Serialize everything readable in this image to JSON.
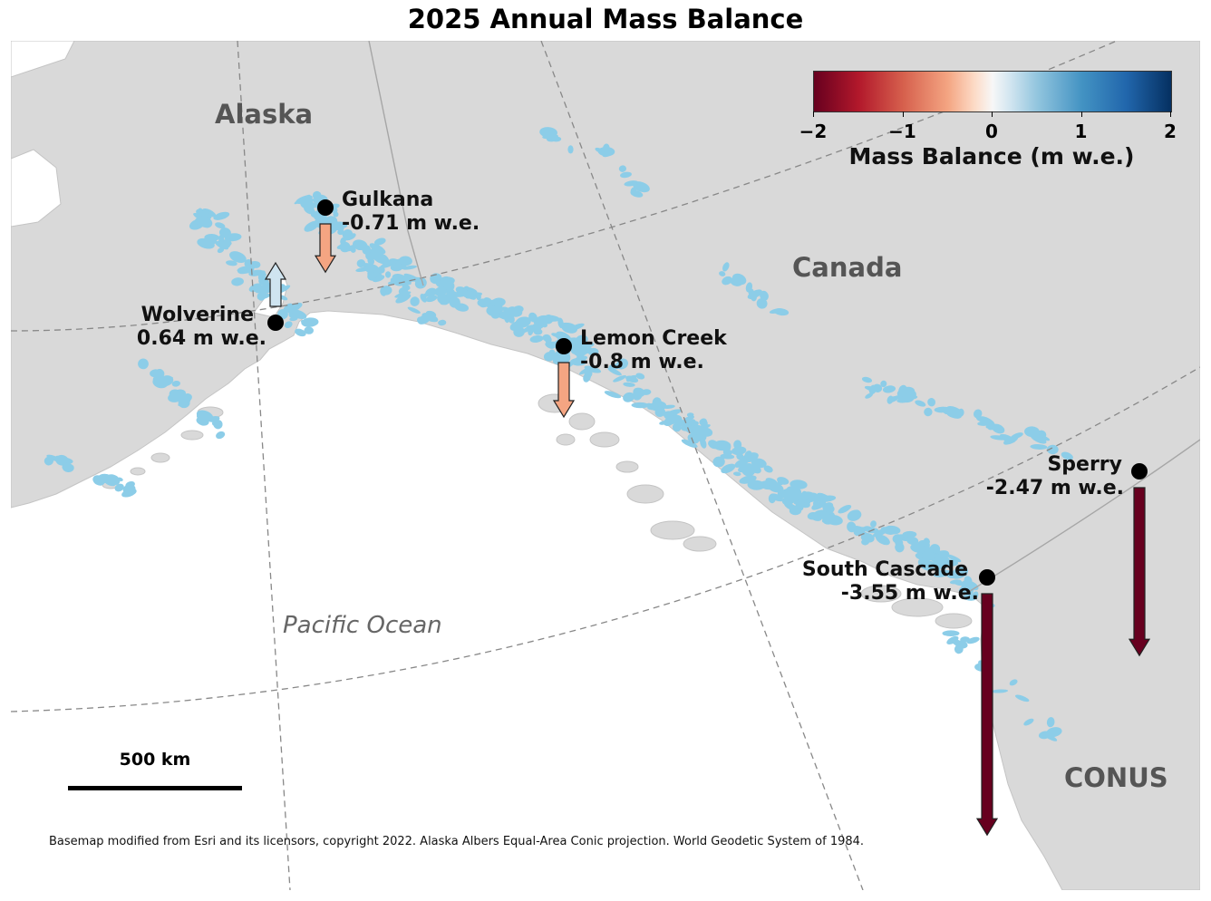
{
  "title": "2025 Annual Mass Balance",
  "regions": {
    "alaska": "Alaska",
    "canada": "Canada",
    "conus": "CONUS",
    "ocean": "Pacific Ocean"
  },
  "colors": {
    "land": "#d9d9d9",
    "water": "#ffffff",
    "glacier": "#8ccde8",
    "graticule": "#888888",
    "marker": "#000000",
    "arrow_gain": "#cfe4f0",
    "arrow_small_loss": "#f4a582",
    "arrow_large_loss": "#67001f"
  },
  "colorbar": {
    "title": "Mass Balance (m w.e.)",
    "min": -2,
    "max": 2,
    "ticks": [
      "−2",
      "−1",
      "0",
      "1",
      "2"
    ],
    "colormap": "RdBu"
  },
  "glaciers": [
    {
      "name": "Gulkana",
      "value_label": "-0.71 m w.e.",
      "mass_balance": -0.71
    },
    {
      "name": "Wolverine",
      "value_label": "0.64 m w.e.",
      "mass_balance": 0.64
    },
    {
      "name": "Lemon Creek",
      "value_label": "-0.8 m w.e.",
      "mass_balance": -0.8
    },
    {
      "name": "Sperry",
      "value_label": "-2.47 m w.e.",
      "mass_balance": -2.47
    },
    {
      "name": "South Cascade",
      "value_label": "-3.55 m w.e.",
      "mass_balance": -3.55
    }
  ],
  "scale_bar": {
    "label": "500 km"
  },
  "attribution": "Basemap modified from Esri and its licensors, copyright 2022. Alaska Albers Equal-Area Conic projection. World Geodetic System of 1984."
}
